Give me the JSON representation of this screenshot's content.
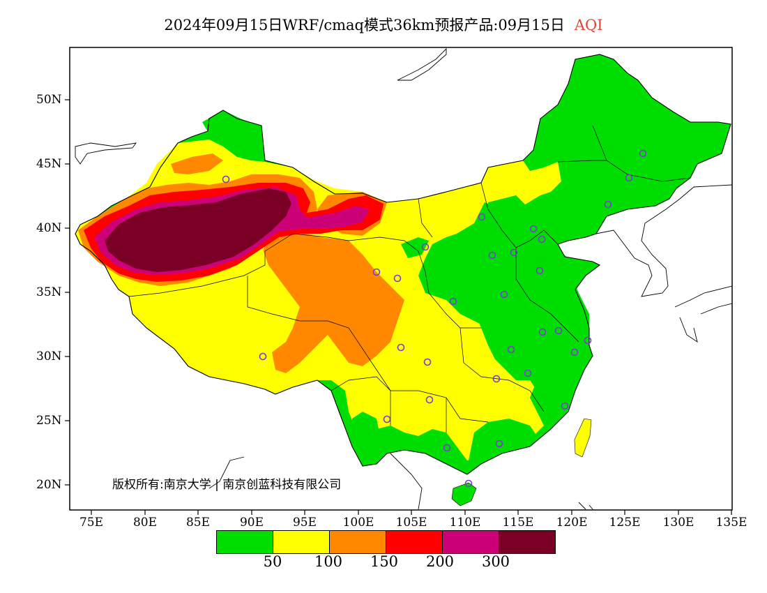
{
  "title": {
    "main": "2024年09月15日WRF/cmaq模式36km预报产品:09月15日",
    "variable": "AQI"
  },
  "axes": {
    "lat_labels": [
      "50N",
      "45N",
      "40N",
      "35N",
      "30N",
      "25N",
      "20N"
    ],
    "lon_labels": [
      "75E",
      "80E",
      "85E",
      "90E",
      "95E",
      "100E",
      "105E",
      "110E",
      "115E",
      "120E",
      "125E",
      "130E",
      "135E"
    ]
  },
  "copyright": "版权所有:南京大学 | 南京创蓝科技有限公司",
  "legend": {
    "colors": [
      "#00dd00",
      "#ffff00",
      "#ff8800",
      "#ff0000",
      "#cc0077",
      "#7a0026"
    ],
    "ticks": [
      "50",
      "100",
      "150",
      "200",
      "300"
    ]
  },
  "colors": {
    "land": "#ffffff",
    "ocean": "#ffffff",
    "boundary": "#000000",
    "station_marker": "#7a3cd6"
  }
}
